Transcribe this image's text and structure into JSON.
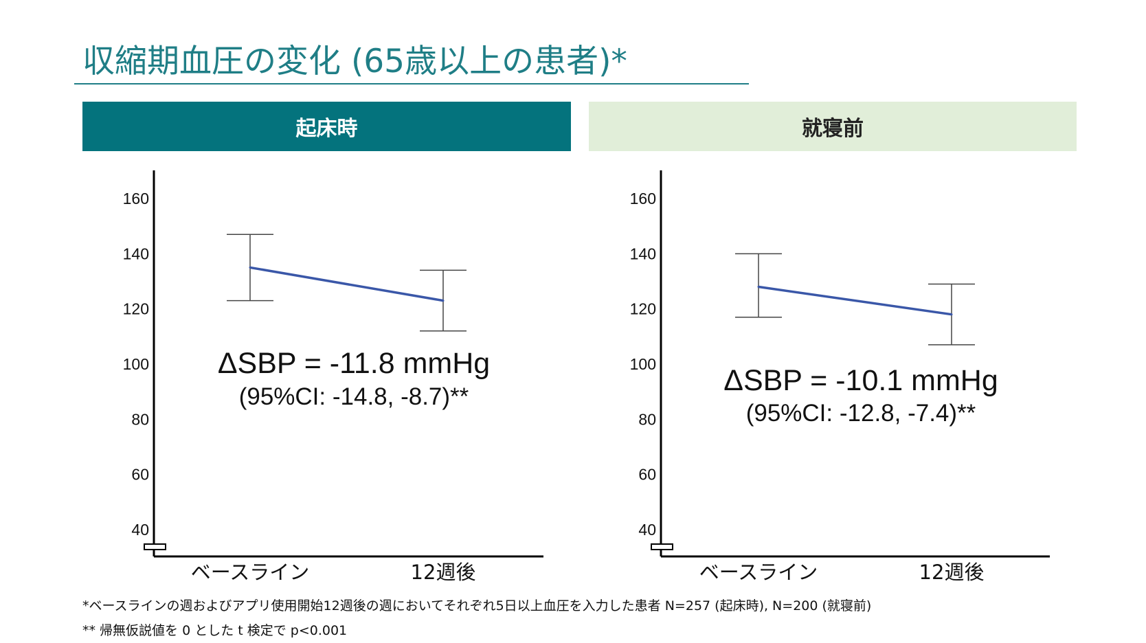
{
  "title": "収縮期血圧の変化 (65歳以上の患者)*",
  "panels": {
    "left_header": "起床時",
    "right_header": "就寝前"
  },
  "chart_data": [
    {
      "type": "line",
      "title": "起床時",
      "categories": [
        "ベースライン",
        "12週後"
      ],
      "values": [
        135,
        123
      ],
      "error_low": [
        123,
        112
      ],
      "error_high": [
        147,
        134
      ],
      "ylim": [
        35,
        170
      ],
      "yticks": [
        40,
        60,
        80,
        100,
        120,
        140,
        160
      ],
      "axis_break": true,
      "annotation": "ΔSBP = -11.8 mmHg",
      "annotation_ci": "(95%CI: -14.8, -8.7)**",
      "line_color": "#3a57a8"
    },
    {
      "type": "line",
      "title": "就寝前",
      "categories": [
        "ベースライン",
        "12週後"
      ],
      "values": [
        128,
        118
      ],
      "error_low": [
        117,
        107
      ],
      "error_high": [
        140,
        129
      ],
      "ylim": [
        35,
        170
      ],
      "yticks": [
        40,
        60,
        80,
        100,
        120,
        140,
        160
      ],
      "axis_break": true,
      "annotation": "ΔSBP = -10.1 mmHg",
      "annotation_ci": "(95%CI: -12.8, -7.4)**",
      "line_color": "#3a57a8"
    }
  ],
  "footnotes": {
    "note1": "*ベースラインの週およびアプリ使用開始12週後の週においてそれぞれ5日以上血圧を入力した患者 N=257 (起床時), N=200 (就寝前)",
    "note2": "** 帰無仮説値を 0 とした t 検定で p<0.001"
  }
}
